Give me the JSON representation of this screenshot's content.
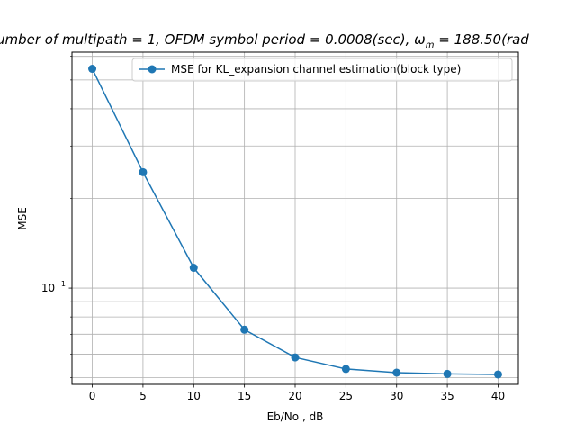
{
  "chart_data": {
    "type": "line",
    "title": "umber of multipath = 1, OFDM symbol period = 0.0008(sec), ω",
    "title_subscript": "m",
    "title_tail": " = 188.50(rad",
    "xlabel": "Eb/No , dB",
    "ylabel": "MSE",
    "x": [
      0,
      5,
      10,
      15,
      20,
      25,
      30,
      35,
      40
    ],
    "x_ticks": [
      "0",
      "5",
      "10",
      "15",
      "20",
      "25",
      "30",
      "35",
      "40"
    ],
    "xlim": [
      -2,
      42
    ],
    "y_scale": "log",
    "ylim": [
      0.0475,
      0.62
    ],
    "y_major_tick": 0.1,
    "y_tick_label_base": "10",
    "y_tick_label_exp": "−1",
    "y_minor_ticks": [
      0.05,
      0.06,
      0.07,
      0.08,
      0.09,
      0.2,
      0.3,
      0.4,
      0.5,
      0.6
    ],
    "grid": true,
    "legend_position": "top-right",
    "series": [
      {
        "name": "MSE for KL_expansion channel estimation(block type)",
        "color": "#1f77b4",
        "marker": "circle",
        "values": [
          0.545,
          0.245,
          0.117,
          0.0725,
          0.0585,
          0.0535,
          0.052,
          0.0515,
          0.0513
        ]
      }
    ]
  }
}
